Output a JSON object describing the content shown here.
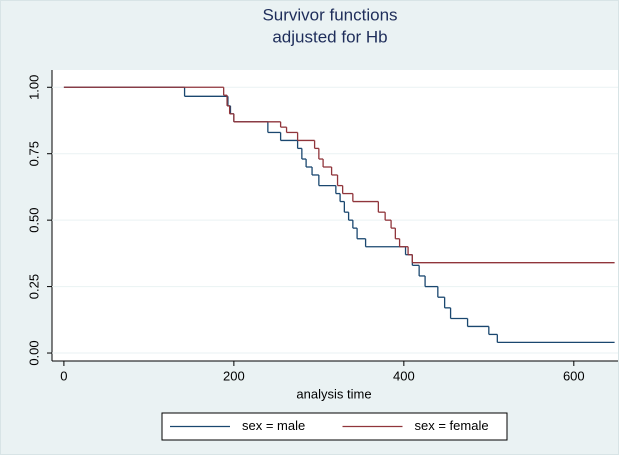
{
  "chart_data": {
    "type": "step",
    "title": [
      "Survivor functions",
      "adjusted for Hb"
    ],
    "x_label": "analysis time",
    "xlim": [
      -14,
      652
    ],
    "xticks": [
      0,
      200,
      400,
      600
    ],
    "ylim": [
      -0.03,
      1.065
    ],
    "yticks": [
      {
        "value": 0,
        "label": "0.00"
      },
      {
        "value": 0.25,
        "label": "0.25"
      },
      {
        "value": 0.5,
        "label": "0.50"
      },
      {
        "value": 0.75,
        "label": "0.75"
      },
      {
        "value": 1,
        "label": "1.00"
      }
    ],
    "grid": true,
    "legend": "bottom",
    "series": [
      {
        "name": "sex = male",
        "color": "#1a476f",
        "x": [
          0,
          142,
          193,
          196,
          200,
          240,
          255,
          275,
          280,
          285,
          292,
          300,
          320,
          325,
          330,
          335,
          340,
          345,
          355,
          402,
          410,
          418,
          425,
          440,
          448,
          455,
          475,
          500,
          510,
          648
        ],
        "values": [
          1,
          0.966,
          0.93,
          0.9,
          0.87,
          0.83,
          0.8,
          0.77,
          0.73,
          0.7,
          0.67,
          0.63,
          0.6,
          0.57,
          0.53,
          0.5,
          0.47,
          0.43,
          0.4,
          0.37,
          0.33,
          0.29,
          0.25,
          0.21,
          0.17,
          0.13,
          0.1,
          0.07,
          0.04,
          0.04
        ]
      },
      {
        "name": "sex = female",
        "color": "#90353b",
        "x": [
          0,
          188,
          192,
          195,
          200,
          255,
          262,
          275,
          295,
          300,
          305,
          315,
          322,
          328,
          340,
          370,
          378,
          385,
          390,
          395,
          405,
          410,
          648
        ],
        "values": [
          1,
          0.97,
          0.93,
          0.9,
          0.87,
          0.85,
          0.83,
          0.8,
          0.77,
          0.73,
          0.7,
          0.67,
          0.63,
          0.6,
          0.57,
          0.53,
          0.5,
          0.47,
          0.43,
          0.4,
          0.37,
          0.34,
          0.34
        ]
      }
    ]
  }
}
